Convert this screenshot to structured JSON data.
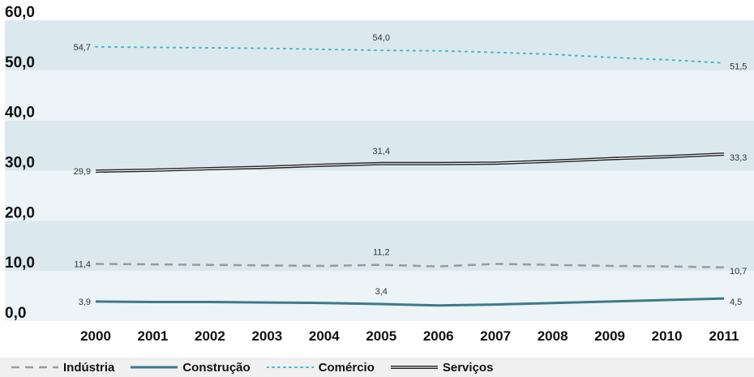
{
  "chart_data": {
    "type": "line",
    "title": "",
    "xlabel": "",
    "ylabel": "",
    "categories": [
      "2000",
      "2001",
      "2002",
      "2003",
      "2004",
      "2005",
      "2006",
      "2007",
      "2008",
      "2009",
      "2010",
      "2011"
    ],
    "ylim": [
      0,
      60
    ],
    "yticks": [
      "0,0",
      "10,0",
      "20,0",
      "30,0",
      "40,0",
      "50,0",
      "60,0"
    ],
    "grid": "alternating horizontal bands",
    "legend_position": "bottom",
    "series": [
      {
        "name": "Indústria",
        "style": "dashed",
        "color": "#9a9a9a",
        "values": [
          11.4,
          11.3,
          11.2,
          11.1,
          11.0,
          11.2,
          10.9,
          11.4,
          11.2,
          11.0,
          10.9,
          10.7
        ]
      },
      {
        "name": "Construção",
        "style": "solid",
        "color": "#3d7a8a",
        "values": [
          3.9,
          3.8,
          3.8,
          3.7,
          3.6,
          3.4,
          3.1,
          3.3,
          3.6,
          3.9,
          4.2,
          4.5
        ]
      },
      {
        "name": "Comércio",
        "style": "dotted",
        "color": "#45b3c9",
        "values": [
          54.7,
          54.6,
          54.5,
          54.4,
          54.2,
          54.0,
          53.9,
          53.6,
          53.2,
          52.6,
          52.1,
          51.5
        ]
      },
      {
        "name": "Serviços",
        "style": "double",
        "color": "#222222",
        "values": [
          29.9,
          30.1,
          30.4,
          30.7,
          31.1,
          31.4,
          31.4,
          31.5,
          31.9,
          32.4,
          32.8,
          33.3
        ]
      }
    ],
    "data_labels": [
      {
        "series": 0,
        "index": 0,
        "text": "11,4"
      },
      {
        "series": 0,
        "index": 5,
        "text": "11,2"
      },
      {
        "series": 0,
        "index": 11,
        "text": "10,7"
      },
      {
        "series": 1,
        "index": 0,
        "text": "3,9"
      },
      {
        "series": 1,
        "index": 5,
        "text": "3,4"
      },
      {
        "series": 1,
        "index": 11,
        "text": "4,5"
      },
      {
        "series": 2,
        "index": 0,
        "text": "54,7"
      },
      {
        "series": 2,
        "index": 5,
        "text": "54,0"
      },
      {
        "series": 2,
        "index": 11,
        "text": "51,5"
      },
      {
        "series": 3,
        "index": 0,
        "text": "29,9"
      },
      {
        "series": 3,
        "index": 5,
        "text": "31,4"
      },
      {
        "series": 3,
        "index": 11,
        "text": "33,3"
      }
    ]
  },
  "colors": {
    "band_dark": "#dbe9ee",
    "band_light": "#ecf4f7",
    "legend_bg": "#f0f0f0"
  }
}
